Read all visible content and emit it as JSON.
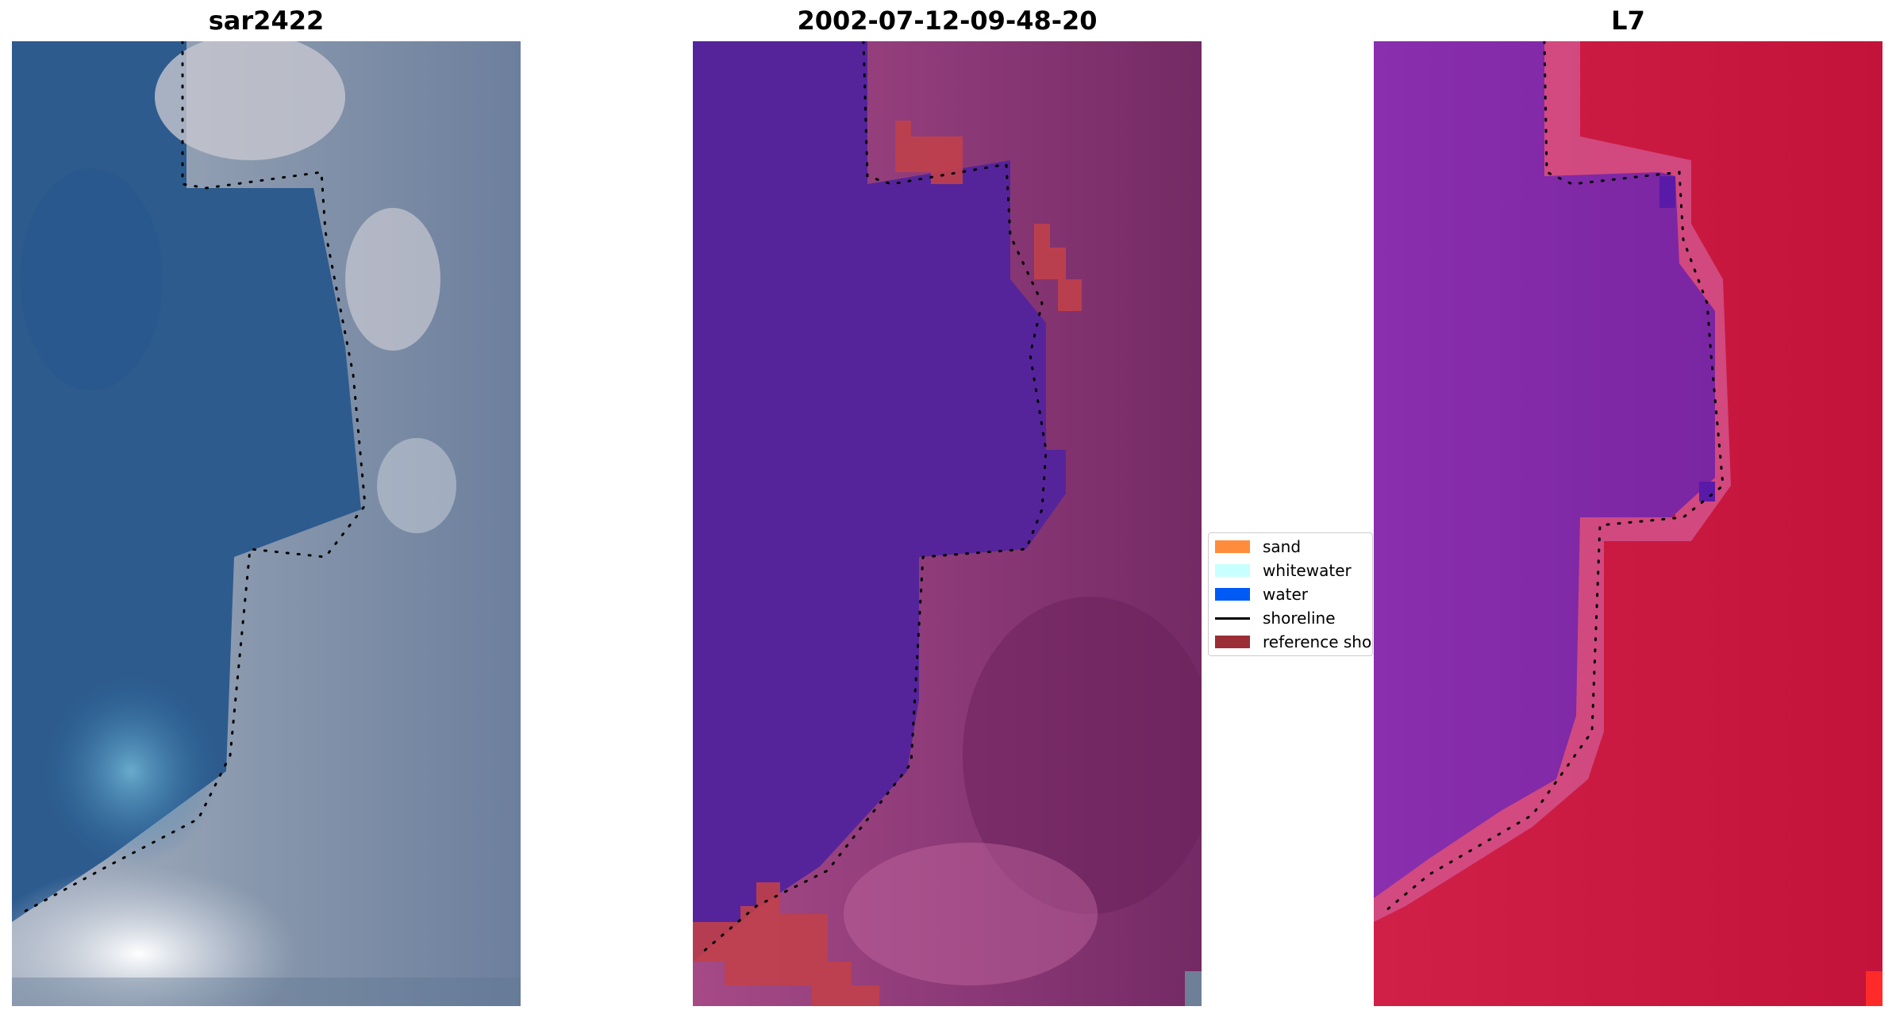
{
  "panels": [
    {
      "title": "sar2422"
    },
    {
      "title": "2002-07-12-09-48-20"
    },
    {
      "title": "L7"
    }
  ],
  "legend": {
    "items": [
      {
        "label": "sand",
        "color": "#ff8c3c",
        "kind": "patch"
      },
      {
        "label": "whitewater",
        "color": "#c8ffff",
        "kind": "patch"
      },
      {
        "label": "water",
        "color": "#005af5",
        "kind": "patch"
      },
      {
        "label": "shoreline",
        "color": "#000000",
        "kind": "line"
      },
      {
        "label": "reference shoreline",
        "color": "#9b2d37",
        "kind": "patch"
      }
    ]
  },
  "colors": {
    "water_rgb": "#2d5b8e",
    "land_rgb": "#8d9db3",
    "water_class": "#55249b",
    "land_class": "#7d2d6b",
    "reference_band": "#c0404a",
    "water_index_low": "#7d2aa5",
    "water_index_high": "#c81a3e"
  }
}
